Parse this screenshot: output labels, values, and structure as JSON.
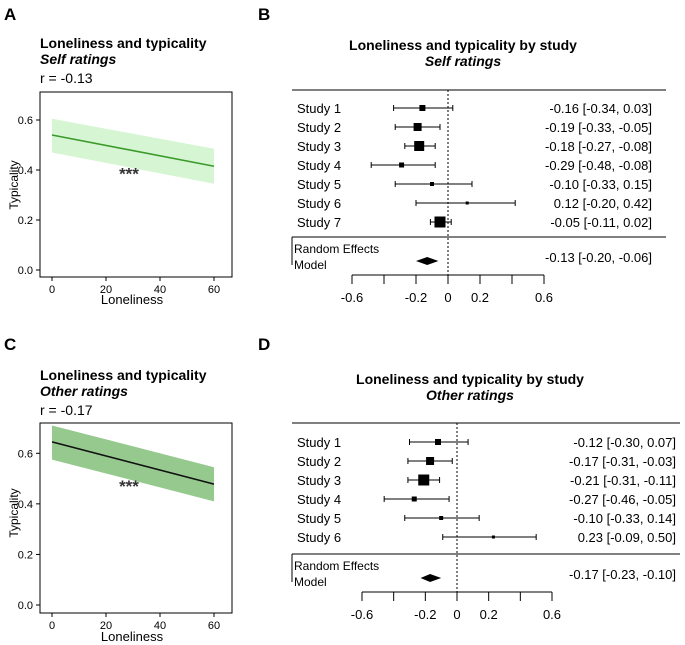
{
  "chart_data": [
    {
      "panel": "A",
      "type": "line",
      "title": "Loneliness and typicality",
      "subtitle": "Self ratings",
      "stat": "r = -0.13",
      "significance": "***",
      "xlabel": "Loneliness",
      "ylabel": "Typicality",
      "xlim": [
        0,
        60
      ],
      "ylim": [
        0,
        0.7
      ],
      "xticks": [
        "0",
        "20",
        "40",
        "60"
      ],
      "yticks": [
        "0.0",
        "0.2",
        "0.4",
        "0.6"
      ],
      "xtick_values": [
        0,
        20,
        40,
        60
      ],
      "ytick_values": [
        0,
        0.2,
        0.4,
        0.6
      ],
      "line": {
        "x": [
          0,
          60
        ],
        "y": [
          0.54,
          0.415
        ]
      },
      "band_upper": [
        0.605,
        0.485
      ],
      "band_lower": [
        0.47,
        0.345
      ],
      "line_color": "#3a9a2a",
      "band_color": "#d6f5d3"
    },
    {
      "panel": "B",
      "type": "forest",
      "title": "Loneliness and typicality by study",
      "subtitle": "Self ratings",
      "xticks": [
        "-0.6",
        "-0.2",
        "0",
        "0.2",
        "0.6"
      ],
      "xtick_values": [
        -0.6,
        -0.2,
        0,
        0.2,
        0.6
      ],
      "minor_ticks": [
        -0.4,
        0.4
      ],
      "xlim": [
        -0.6,
        0.6
      ],
      "studies": [
        {
          "label": "Study 1",
          "est": -0.16,
          "lo": -0.34,
          "hi": 0.03,
          "ci_text": "-0.16 [-0.34,  0.03]",
          "size": 6
        },
        {
          "label": "Study 2",
          "est": -0.19,
          "lo": -0.33,
          "hi": -0.05,
          "ci_text": "-0.19 [-0.33, -0.05]",
          "size": 8
        },
        {
          "label": "Study 3",
          "est": -0.18,
          "lo": -0.27,
          "hi": -0.08,
          "ci_text": "-0.18 [-0.27, -0.08]",
          "size": 10
        },
        {
          "label": "Study 4",
          "est": -0.29,
          "lo": -0.48,
          "hi": -0.08,
          "ci_text": "-0.29 [-0.48, -0.08]",
          "size": 5
        },
        {
          "label": "Study 5",
          "est": -0.1,
          "lo": -0.33,
          "hi": 0.15,
          "ci_text": "-0.10 [-0.33,  0.15]",
          "size": 4
        },
        {
          "label": "Study 6",
          "est": 0.12,
          "lo": -0.2,
          "hi": 0.42,
          "ci_text": " 0.12 [-0.20,  0.42]",
          "size": 3
        },
        {
          "label": "Study 7",
          "est": -0.05,
          "lo": -0.11,
          "hi": 0.02,
          "ci_text": "-0.05 [-0.11,  0.02]",
          "size": 11
        }
      ],
      "summary": {
        "label": "Random Effects Model",
        "est": -0.13,
        "lo": -0.2,
        "hi": -0.06,
        "ci_text": "-0.13 [-0.20, -0.06]"
      }
    },
    {
      "panel": "C",
      "type": "line",
      "title": "Loneliness and typicality",
      "subtitle": "Other ratings",
      "stat": "r = -0.17",
      "significance": "***",
      "xlabel": "Loneliness",
      "ylabel": "Typicality",
      "xlim": [
        0,
        60
      ],
      "ylim": [
        0,
        0.7
      ],
      "xticks": [
        "0",
        "20",
        "40",
        "60"
      ],
      "yticks": [
        "0.0",
        "0.2",
        "0.4",
        "0.6"
      ],
      "xtick_values": [
        0,
        20,
        40,
        60
      ],
      "ytick_values": [
        0,
        0.2,
        0.4,
        0.6
      ],
      "line": {
        "x": [
          0,
          60
        ],
        "y": [
          0.645,
          0.478
        ]
      },
      "band_upper": [
        0.71,
        0.545
      ],
      "band_lower": [
        0.575,
        0.41
      ],
      "line_color": "#111111",
      "band_color": "#95c98e"
    },
    {
      "panel": "D",
      "type": "forest",
      "title": "Loneliness and typicality by study",
      "subtitle": "Other ratings",
      "xticks": [
        "-0.6",
        "-0.2",
        "0",
        "0.2",
        "0.6"
      ],
      "xtick_values": [
        -0.6,
        -0.2,
        0,
        0.2,
        0.6
      ],
      "minor_ticks": [
        -0.4,
        0.4
      ],
      "xlim": [
        -0.6,
        0.6
      ],
      "studies": [
        {
          "label": "Study 1",
          "est": -0.12,
          "lo": -0.3,
          "hi": 0.07,
          "ci_text": "-0.12 [-0.30,  0.07]",
          "size": 6
        },
        {
          "label": "Study 2",
          "est": -0.17,
          "lo": -0.31,
          "hi": -0.03,
          "ci_text": "-0.17 [-0.31, -0.03]",
          "size": 8
        },
        {
          "label": "Study 3",
          "est": -0.21,
          "lo": -0.31,
          "hi": -0.11,
          "ci_text": "-0.21 [-0.31, -0.11]",
          "size": 11
        },
        {
          "label": "Study 4",
          "est": -0.27,
          "lo": -0.46,
          "hi": -0.05,
          "ci_text": "-0.27 [-0.46, -0.05]",
          "size": 5
        },
        {
          "label": "Study 5",
          "est": -0.1,
          "lo": -0.33,
          "hi": 0.14,
          "ci_text": "-0.10 [-0.33,  0.14]",
          "size": 4
        },
        {
          "label": "Study 6",
          "est": 0.23,
          "lo": -0.09,
          "hi": 0.5,
          "ci_text": " 0.23 [-0.09,  0.50]",
          "size": 3
        }
      ],
      "summary": {
        "label": "Random Effects Model",
        "est": -0.17,
        "lo": -0.23,
        "hi": -0.1,
        "ci_text": "-0.17 [-0.23, -0.10]"
      }
    }
  ]
}
